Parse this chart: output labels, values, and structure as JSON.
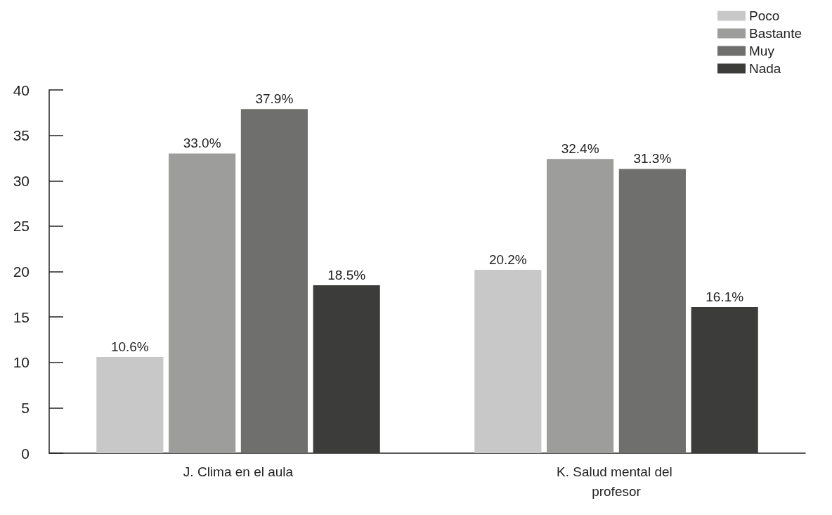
{
  "chart_data": {
    "type": "bar",
    "categories": [
      "J. Clima en el aula",
      "K. Salud mental del profesor"
    ],
    "series": [
      {
        "name": "Poco",
        "color": "#c8c8c8",
        "values": [
          10.6,
          20.2
        ],
        "value_labels": [
          "10.6%",
          "20.2%"
        ]
      },
      {
        "name": "Bastante",
        "color": "#9d9d9c",
        "values": [
          33.0,
          32.4
        ],
        "value_labels": [
          "33.0%",
          "32.4%"
        ]
      },
      {
        "name": "Muy",
        "color": "#6f6f6e",
        "values": [
          37.9,
          31.3
        ],
        "value_labels": [
          "37.9%",
          "31.3%"
        ]
      },
      {
        "name": "Nada",
        "color": "#3c3c3b",
        "values": [
          18.5,
          16.1
        ],
        "value_labels": [
          "18.5%",
          "16.1%"
        ]
      }
    ],
    "ylim": [
      0,
      40
    ],
    "yticks": [
      0,
      5,
      10,
      15,
      20,
      25,
      30,
      35,
      40
    ],
    "grid": false,
    "legend": "top right"
  }
}
